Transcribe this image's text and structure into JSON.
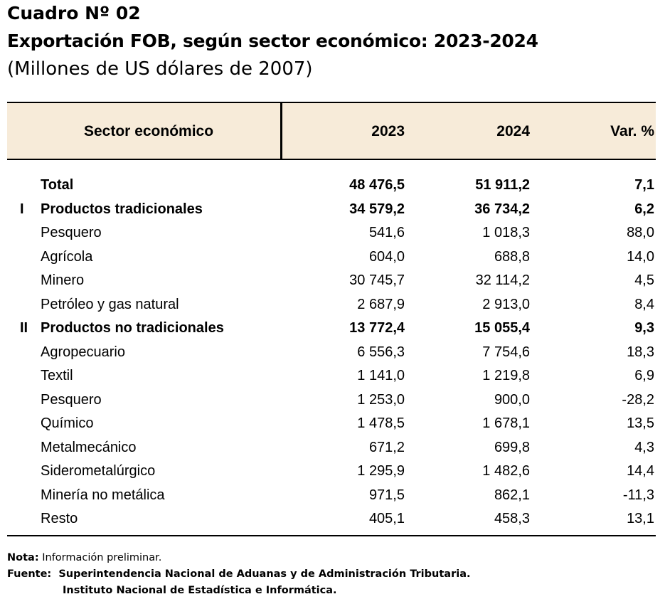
{
  "title": {
    "number": "Cuadro Nº 02",
    "main": "Exportación FOB, según sector económico: 2023-2024",
    "units": "(Millones de US dólares de 2007)"
  },
  "table": {
    "headers": {
      "sector": "Sector económico",
      "y2023": "2023",
      "y2024": "2024",
      "var": "Var. %"
    },
    "rows": [
      {
        "num": "",
        "label": "Total",
        "v2023": "48 476,5",
        "v2024": "51 911,2",
        "var": "7,1",
        "bold": true
      },
      {
        "num": "I",
        "label": "Productos tradicionales",
        "v2023": "34 579,2",
        "v2024": "36 734,2",
        "var": "6,2",
        "bold": true
      },
      {
        "num": "",
        "label": "Pesquero",
        "v2023": "541,6",
        "v2024": "1 018,3",
        "var": "88,0",
        "bold": false
      },
      {
        "num": "",
        "label": "Agrícola",
        "v2023": "604,0",
        "v2024": "688,8",
        "var": "14,0",
        "bold": false
      },
      {
        "num": "",
        "label": "Minero",
        "v2023": "30 745,7",
        "v2024": "32 114,2",
        "var": "4,5",
        "bold": false
      },
      {
        "num": "",
        "label": "Petróleo y gas natural",
        "v2023": "2 687,9",
        "v2024": "2 913,0",
        "var": "8,4",
        "bold": false
      },
      {
        "num": "II",
        "label": "Productos no tradicionales",
        "v2023": "13 772,4",
        "v2024": "15 055,4",
        "var": "9,3",
        "bold": true
      },
      {
        "num": "",
        "label": "Agropecuario",
        "v2023": "6 556,3",
        "v2024": "7 754,6",
        "var": "18,3",
        "bold": false
      },
      {
        "num": "",
        "label": "Textil",
        "v2023": "1 141,0",
        "v2024": "1 219,8",
        "var": "6,9",
        "bold": false
      },
      {
        "num": "",
        "label": "Pesquero",
        "v2023": "1 253,0",
        "v2024": "900,0",
        "var": "-28,2",
        "bold": false
      },
      {
        "num": "",
        "label": "Químico",
        "v2023": "1 478,5",
        "v2024": "1 678,1",
        "var": "13,5",
        "bold": false
      },
      {
        "num": "",
        "label": "Metalmecánico",
        "v2023": "671,2",
        "v2024": "699,8",
        "var": "4,3",
        "bold": false
      },
      {
        "num": "",
        "label": "Siderometalúrgico",
        "v2023": "1 295,9",
        "v2024": "1 482,6",
        "var": "14,4",
        "bold": false
      },
      {
        "num": "",
        "label": "Minería no metálica",
        "v2023": "971,5",
        "v2024": "862,1",
        "var": "-11,3",
        "bold": false
      },
      {
        "num": "",
        "label": "Resto",
        "v2023": "405,1",
        "v2024": "458,3",
        "var": "13,1",
        "bold": false
      }
    ]
  },
  "footer": {
    "note_label": "Nota:",
    "note_text": " Información preliminar.",
    "source_label": "Fuente:",
    "source_line1": "  Superintendencia Nacional de Aduanas y de Administración Tributaria.",
    "source_line2": "Instituto Nacional de Estadística e Informática."
  },
  "colors": {
    "header_bg": "#f7ebd9",
    "rule": "#000000"
  }
}
